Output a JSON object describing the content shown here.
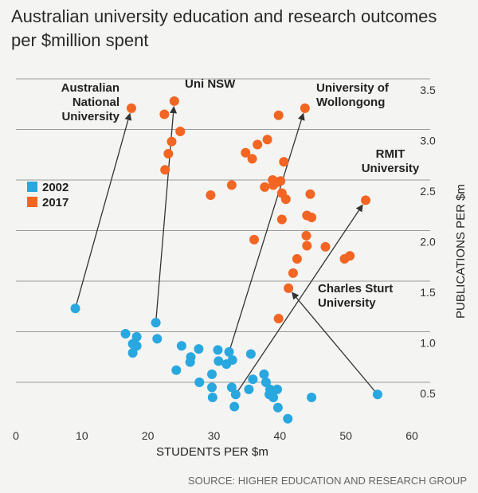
{
  "title": "Australian university education and research outcomes per $million spent",
  "source": "SOURCE: HIGHER EDUCATION AND RESEARCH GROUP",
  "colors": {
    "s2002": "#29a7df",
    "s2017": "#f26522",
    "grid": "#9a9a9a",
    "arrow": "#333333"
  },
  "chart_data": {
    "type": "scatter",
    "xlabel": "STUDENTS PER $m",
    "ylabel": "PUBLICATIONS PER $m",
    "xlim": [
      0,
      60
    ],
    "ylim": [
      0.15,
      3.5
    ],
    "xticks": [
      0,
      10,
      20,
      30,
      40,
      50,
      60
    ],
    "yticks": [
      0.5,
      1.0,
      1.5,
      2.0,
      2.5,
      3.0,
      3.5
    ],
    "ytick_labels": [
      "0.5",
      "1.0",
      "1.5",
      "2.0",
      "2.5",
      "3.0",
      "3.5"
    ],
    "grid": "horizontal",
    "legend": "left",
    "series": [
      {
        "name": "2002",
        "color": "#29a7df",
        "points": [
          [
            9.0,
            1.23
          ],
          [
            16.6,
            0.98
          ],
          [
            18.3,
            0.95
          ],
          [
            17.7,
            0.88
          ],
          [
            18.3,
            0.86
          ],
          [
            17.7,
            0.79
          ],
          [
            21.2,
            1.09
          ],
          [
            21.4,
            0.93
          ],
          [
            25.1,
            0.86
          ],
          [
            24.3,
            0.62
          ],
          [
            26.4,
            0.7
          ],
          [
            26.5,
            0.75
          ],
          [
            27.7,
            0.83
          ],
          [
            27.8,
            0.5
          ],
          [
            29.7,
            0.58
          ],
          [
            29.7,
            0.45
          ],
          [
            29.8,
            0.35
          ],
          [
            30.6,
            0.82
          ],
          [
            30.7,
            0.71
          ],
          [
            31.9,
            0.68
          ],
          [
            32.3,
            0.8
          ],
          [
            32.8,
            0.72
          ],
          [
            32.7,
            0.45
          ],
          [
            33.3,
            0.38
          ],
          [
            33.1,
            0.26
          ],
          [
            35.6,
            0.78
          ],
          [
            35.9,
            0.53
          ],
          [
            35.3,
            0.43
          ],
          [
            37.6,
            0.58
          ],
          [
            37.9,
            0.5
          ],
          [
            38.5,
            0.43
          ],
          [
            38.4,
            0.38
          ],
          [
            39.0,
            0.35
          ],
          [
            39.6,
            0.43
          ],
          [
            39.7,
            0.25
          ],
          [
            41.2,
            0.14
          ],
          [
            44.8,
            0.35
          ],
          [
            54.8,
            0.38
          ]
        ]
      },
      {
        "name": "2017",
        "color": "#f26522",
        "points": [
          [
            17.5,
            3.21
          ],
          [
            22.5,
            3.15
          ],
          [
            24.0,
            3.28
          ],
          [
            24.9,
            2.98
          ],
          [
            23.6,
            2.88
          ],
          [
            23.1,
            2.76
          ],
          [
            22.6,
            2.6
          ],
          [
            29.5,
            2.35
          ],
          [
            32.7,
            2.45
          ],
          [
            34.8,
            2.77
          ],
          [
            35.8,
            2.71
          ],
          [
            36.6,
            2.85
          ],
          [
            38.1,
            2.9
          ],
          [
            37.7,
            2.43
          ],
          [
            38.9,
            2.5
          ],
          [
            39.0,
            2.45
          ],
          [
            39.7,
            2.48
          ],
          [
            40.1,
            2.49
          ],
          [
            39.8,
            3.14
          ],
          [
            40.6,
            2.68
          ],
          [
            40.3,
            2.37
          ],
          [
            40.9,
            2.31
          ],
          [
            40.3,
            2.11
          ],
          [
            36.1,
            1.91
          ],
          [
            43.8,
            3.21
          ],
          [
            44.6,
            2.36
          ],
          [
            44.1,
            2.15
          ],
          [
            44.8,
            2.13
          ],
          [
            44.0,
            1.95
          ],
          [
            44.1,
            1.85
          ],
          [
            46.9,
            1.84
          ],
          [
            49.8,
            1.72
          ],
          [
            50.6,
            1.75
          ],
          [
            42.6,
            1.72
          ],
          [
            42.0,
            1.58
          ],
          [
            41.3,
            1.43
          ],
          [
            39.8,
            1.13
          ],
          [
            53.0,
            2.3
          ]
        ]
      }
    ],
    "annotations": [
      {
        "lines": [
          "Australian",
          "National",
          "University"
        ],
        "from": [
          9.0,
          1.23
        ],
        "to": [
          17.5,
          3.21
        ]
      },
      {
        "lines": [
          "Uni NSW"
        ],
        "from": [
          21.2,
          1.09
        ],
        "to": [
          24.0,
          3.28
        ]
      },
      {
        "lines": [
          "University of",
          "Wollongong"
        ],
        "from": [
          32.3,
          0.8
        ],
        "to": [
          43.8,
          3.21
        ]
      },
      {
        "lines": [
          "RMIT",
          "University"
        ],
        "from": [
          33.3,
          0.38
        ],
        "to": [
          53.0,
          2.3
        ]
      },
      {
        "lines": [
          "Charles Sturt",
          "University"
        ],
        "from": [
          54.8,
          0.38
        ],
        "to": [
          41.3,
          1.43
        ]
      }
    ]
  }
}
